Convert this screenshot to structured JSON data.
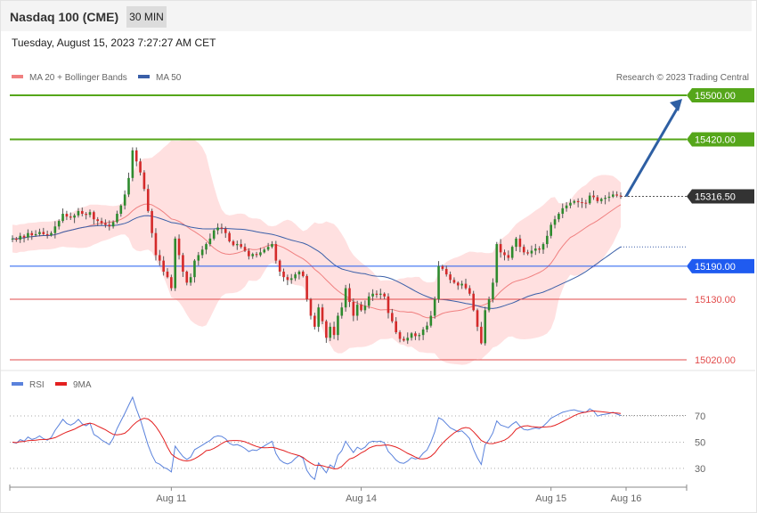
{
  "header": {
    "title": "Nasdaq 100 (CME)",
    "timeframe": "30 MIN"
  },
  "datetime": "Tuesday, August 15, 2023 7:27:27 AM CET",
  "credit": "Research © 2023 Trading Central",
  "colors": {
    "up": "#2e8b2e",
    "down": "#d42a2a",
    "bands": "#ffdada",
    "ma20": "#f08080",
    "ma50": "#3a5fa8",
    "resistance": "#55a61a",
    "support": "#e24b4b",
    "pivot": "#1f5bf0",
    "last": "#333333",
    "arrow": "#2e5fa3",
    "rsi": "#5a82dc",
    "rsi_ma": "#e32020"
  },
  "chart_data": [
    {
      "type": "candlestick",
      "title": "Nasdaq 100 (CME)",
      "legend": [
        {
          "name": "MA 20 + Bollinger Bands",
          "color": "#f08080"
        },
        {
          "name": "MA 50",
          "color": "#3a5fa8"
        }
      ],
      "ylim": [
        15005,
        15520
      ],
      "x_tick_labels": [
        "Aug 11",
        "Aug 14",
        "Aug 15",
        "Aug 16"
      ],
      "levels": [
        {
          "label": "15500.00",
          "value": 15500,
          "kind": "resistance"
        },
        {
          "label": "15420.00",
          "value": 15420,
          "kind": "resistance"
        },
        {
          "label": "15316.50",
          "value": 15316.5,
          "kind": "last"
        },
        {
          "label": "15190.00",
          "value": 15190,
          "kind": "pivot"
        },
        {
          "label": "15130.00",
          "value": 15130,
          "kind": "support"
        },
        {
          "label": "15020.00",
          "value": 15020,
          "kind": "support"
        }
      ],
      "projection": {
        "from": 15316.5,
        "to": 15500
      },
      "start_price": 15240,
      "closes": [
        15240,
        15238,
        15245,
        15242,
        15250,
        15246,
        15248,
        15252,
        15248,
        15246,
        15250,
        15262,
        15272,
        15285,
        15280,
        15278,
        15282,
        15290,
        15285,
        15283,
        15288,
        15275,
        15272,
        15268,
        15265,
        15262,
        15270,
        15285,
        15300,
        15320,
        15350,
        15400,
        15380,
        15360,
        15330,
        15290,
        15250,
        15210,
        15200,
        15180,
        15170,
        15150,
        15240,
        15210,
        15180,
        15160,
        15170,
        15200,
        15210,
        15220,
        15230,
        15240,
        15255,
        15260,
        15258,
        15250,
        15235,
        15228,
        15230,
        15225,
        15218,
        15208,
        15212,
        15210,
        15215,
        15220,
        15225,
        15230,
        15200,
        15180,
        15170,
        15165,
        15168,
        15175,
        15180,
        15172,
        15130,
        15100,
        15080,
        15115,
        15090,
        15060,
        15080,
        15065,
        15100,
        15115,
        15150,
        15125,
        15100,
        15120,
        15110,
        15118,
        15135,
        15140,
        15138,
        15140,
        15135,
        15105,
        15090,
        15070,
        15058,
        15055,
        15060,
        15068,
        15063,
        15065,
        15075,
        15082,
        15100,
        15130,
        15190,
        15185,
        15175,
        15165,
        15160,
        15155,
        15158,
        15150,
        15140,
        15110,
        15080,
        15050,
        15110,
        15130,
        15160,
        15230,
        15215,
        15210,
        15205,
        15225,
        15240,
        15225,
        15215,
        15213,
        15218,
        15222,
        15220,
        15230,
        15245,
        15265,
        15275,
        15285,
        15295,
        15300,
        15305,
        15308,
        15306,
        15305,
        15304,
        15318,
        15315,
        15308,
        15312,
        15314,
        15316,
        15320,
        15318,
        15316.5
      ]
    },
    {
      "type": "line",
      "title": "RSI",
      "series": [
        {
          "name": "RSI"
        },
        {
          "name": "9MA"
        }
      ],
      "ylim": [
        17,
        85
      ],
      "yticks": [
        70,
        50,
        30
      ],
      "hlines": [
        70,
        50,
        30
      ]
    }
  ]
}
